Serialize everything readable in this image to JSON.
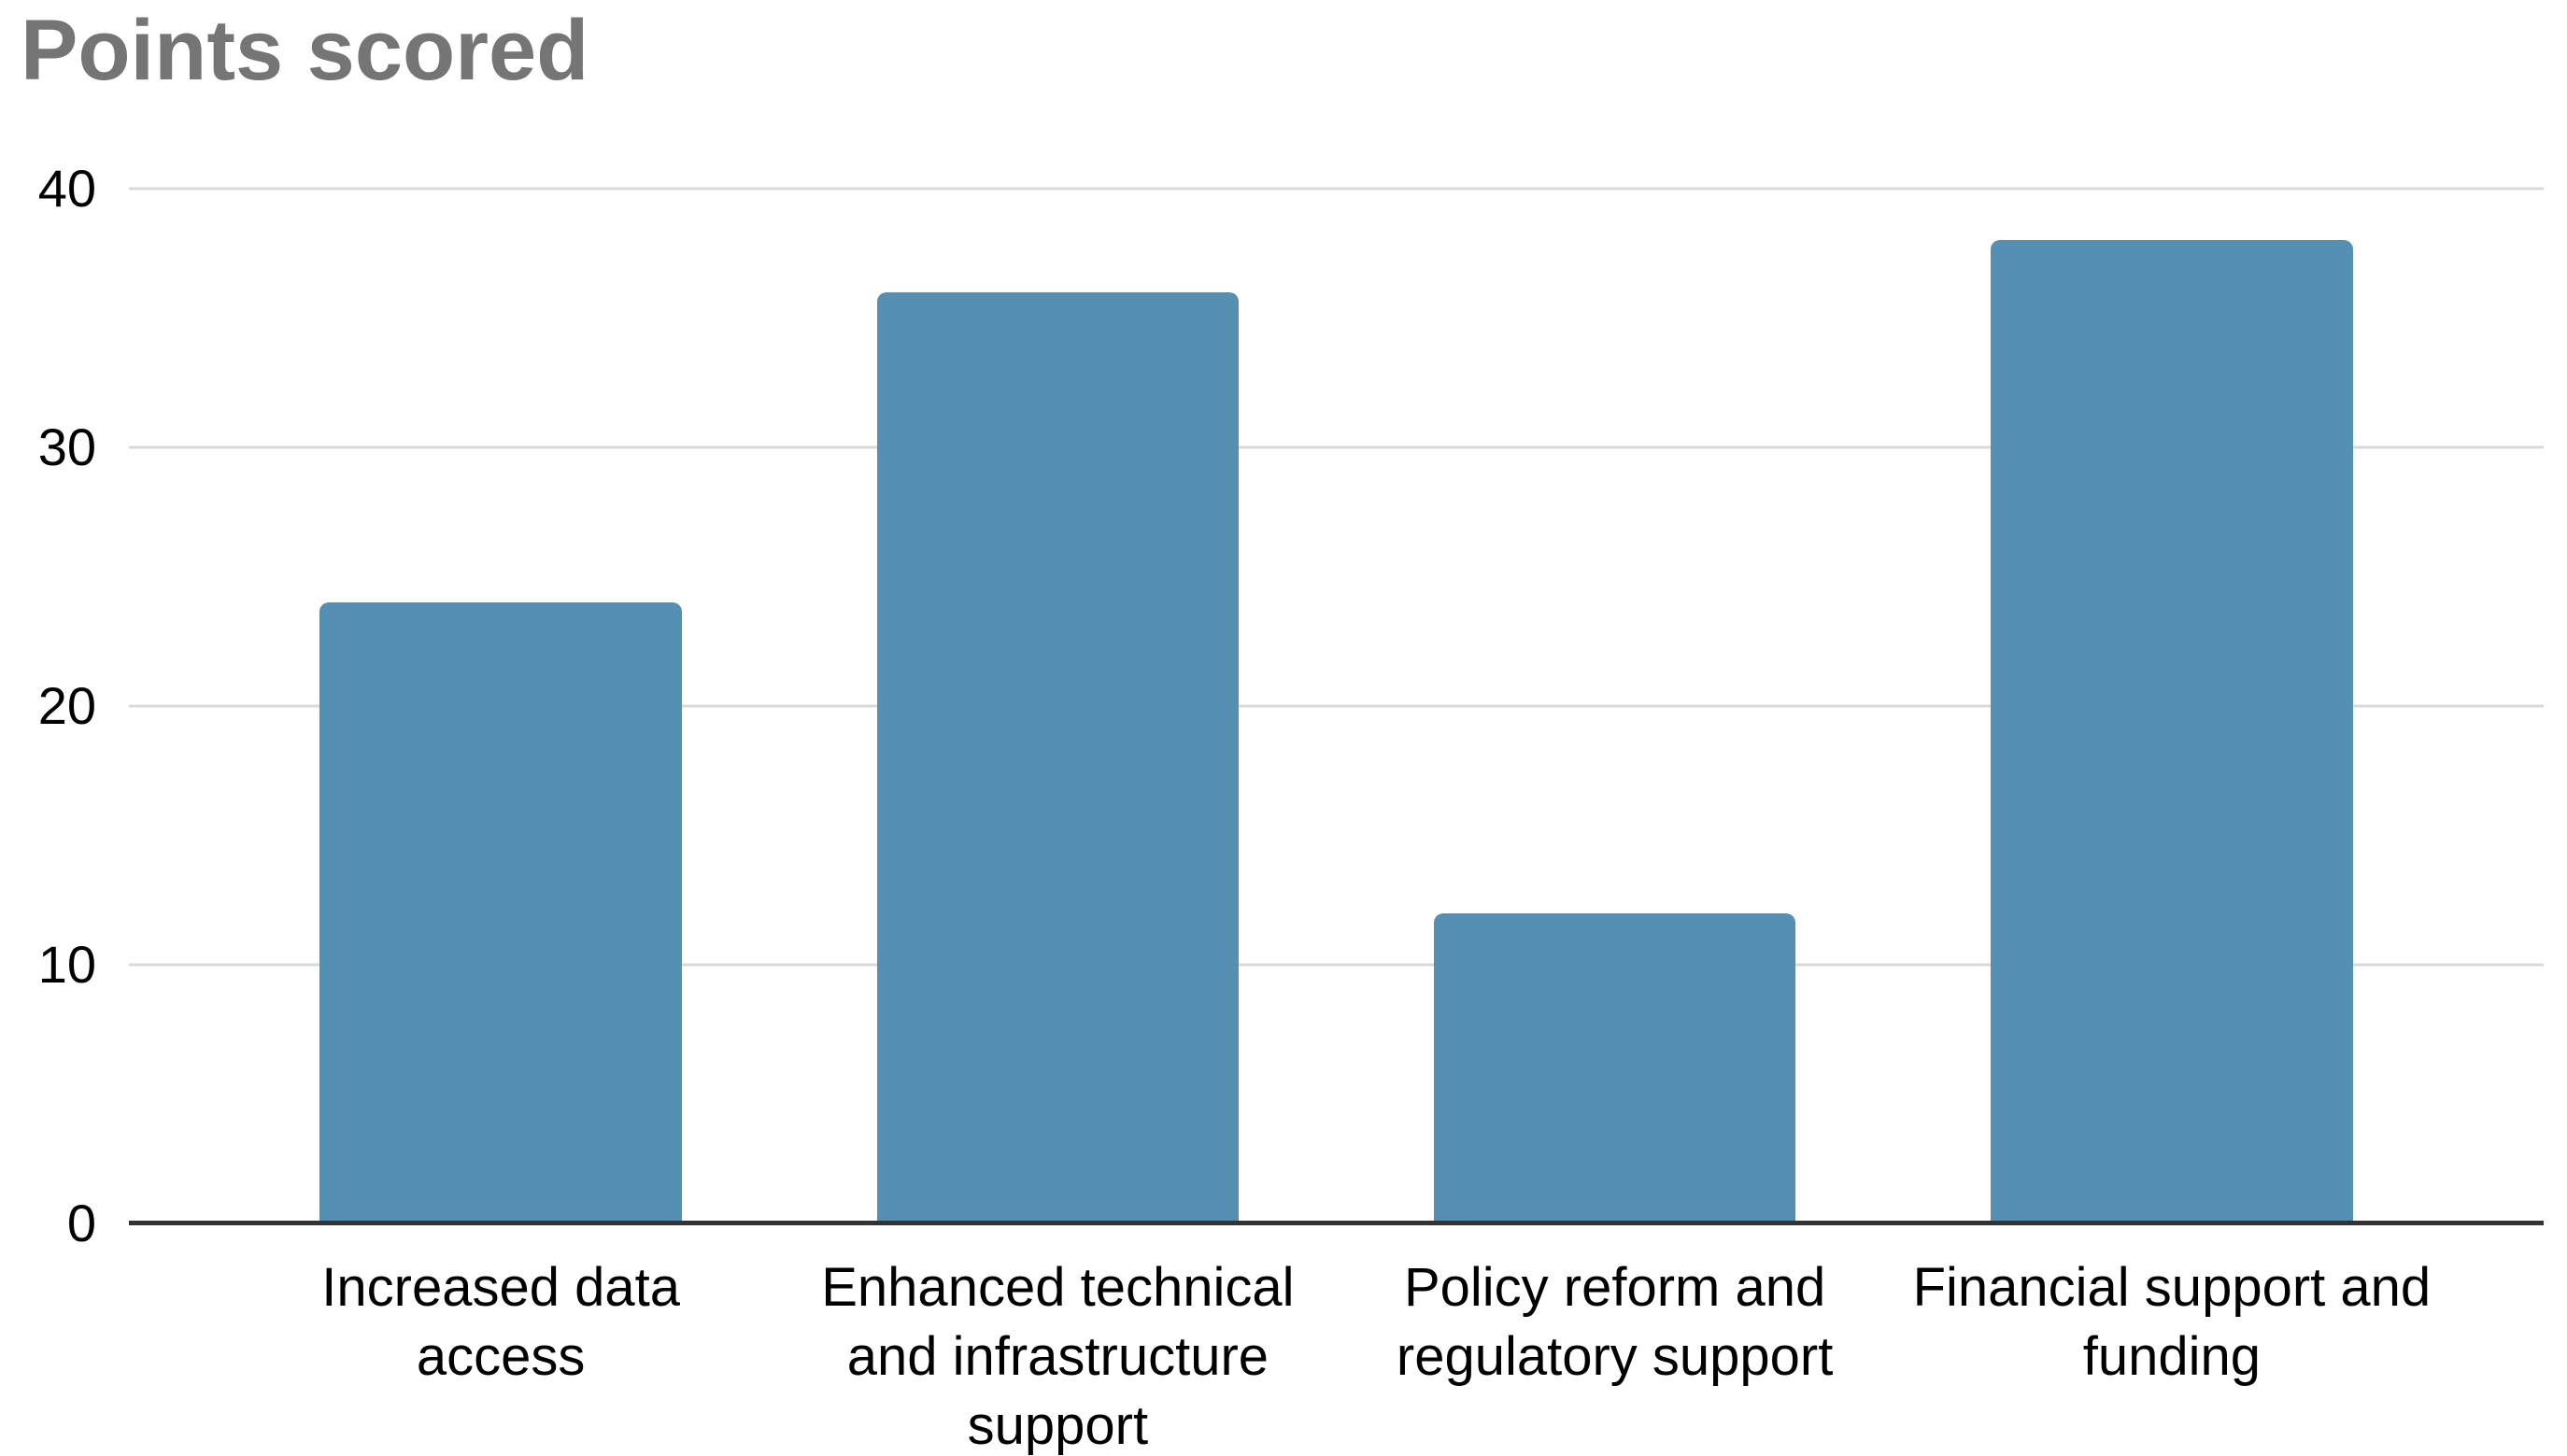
{
  "chart_data": {
    "type": "bar",
    "title": "Points scored",
    "categories": [
      "Increased data access",
      "Enhanced technical and infrastructure support",
      "Policy reform and regulatory support",
      "Financial support and funding"
    ],
    "label_lines": [
      [
        "Increased data",
        "access"
      ],
      [
        "Enhanced technical",
        "and infrastructure",
        "support"
      ],
      [
        "Policy reform and",
        "regulatory support"
      ],
      [
        "Financial support and",
        "funding"
      ]
    ],
    "values": [
      24,
      36,
      12,
      38
    ],
    "yticks": [
      40,
      30,
      20,
      10,
      0
    ],
    "ylim": [
      0,
      40
    ],
    "xlabel": "",
    "ylabel": "",
    "grid": "horizontal",
    "legend_position": "none",
    "bar_color": "#5590b2",
    "title_color": "#757575",
    "gridline_color": "#d9d9d9",
    "axis_line_color": "#333333",
    "label_color": "#000000"
  }
}
